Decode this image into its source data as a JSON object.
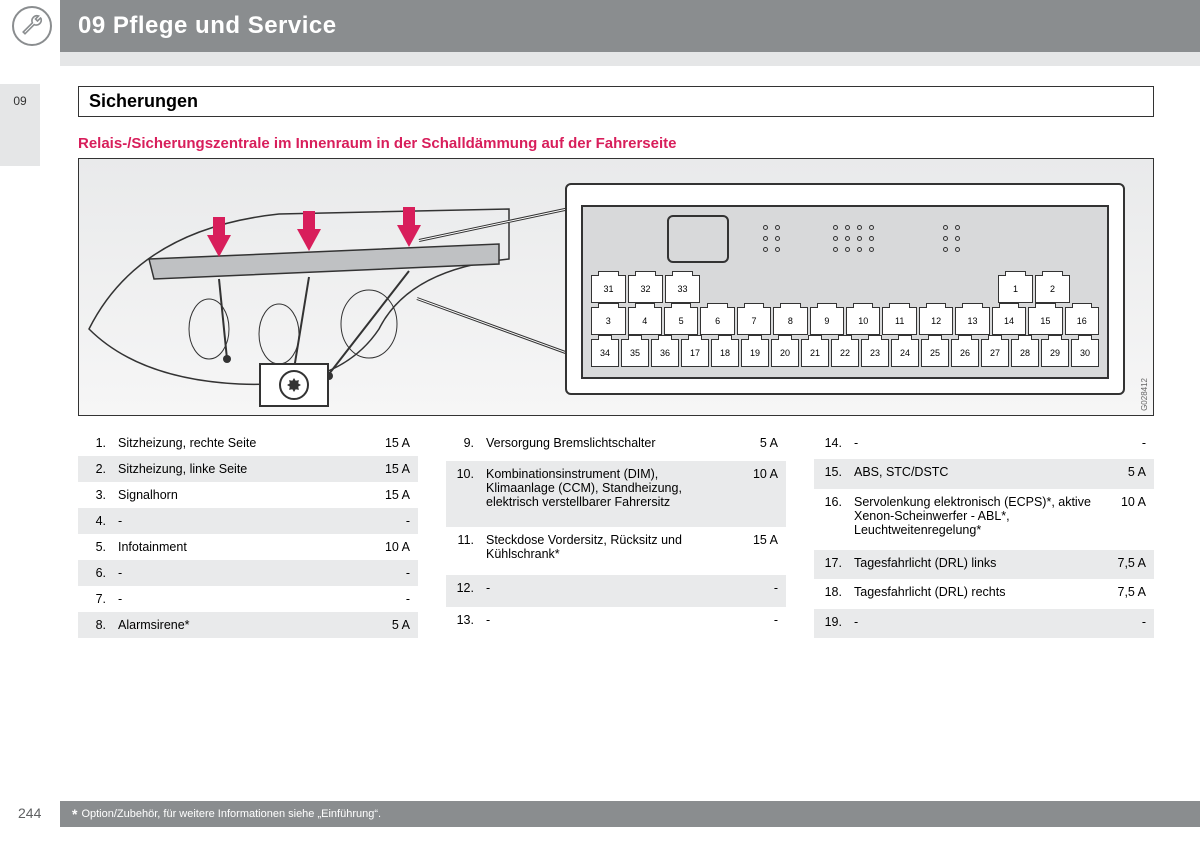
{
  "header": {
    "chapter_title": "09 Pflege und Service"
  },
  "side_tab": "09",
  "section_title": "Sicherungen",
  "subheading": "Relais-/Sicherungszentrale im Innenraum in der Schalldämmung auf der Fahrerseite",
  "diagram_code": "G028412",
  "page_number": "244",
  "footnote": "Option/Zubehör, für weitere Informationen siehe „Einführung“.",
  "footnote_marker": "*",
  "fuse_numbers_top_short_left": [
    "31",
    "32",
    "33"
  ],
  "fuse_numbers_top_short_right": [
    "1",
    "2"
  ],
  "fuse_numbers_row2": [
    "3",
    "4",
    "5",
    "6",
    "7",
    "8",
    "9",
    "10",
    "11",
    "12",
    "13",
    "14",
    "15",
    "16"
  ],
  "fuse_numbers_bottom_left": [
    "34",
    "35",
    "36"
  ],
  "fuse_numbers_row3": [
    "17",
    "18",
    "19",
    "20",
    "21",
    "22",
    "23",
    "24",
    "25",
    "26",
    "27",
    "28",
    "29",
    "30"
  ],
  "tables": {
    "col1": [
      {
        "n": "1.",
        "desc": "Sitzheizung, rechte Seite",
        "amp": "15 A"
      },
      {
        "n": "2.",
        "desc": "Sitzheizung, linke Seite",
        "amp": "15 A"
      },
      {
        "n": "3.",
        "desc": "Signalhorn",
        "amp": "15 A"
      },
      {
        "n": "4.",
        "desc": "-",
        "amp": "-"
      },
      {
        "n": "5.",
        "desc": "Infotainment",
        "amp": "10 A"
      },
      {
        "n": "6.",
        "desc": "-",
        "amp": "-"
      },
      {
        "n": "7.",
        "desc": "-",
        "amp": "-"
      },
      {
        "n": "8.",
        "desc": "Alarmsirene*",
        "amp": "5 A"
      }
    ],
    "col2": [
      {
        "n": "9.",
        "desc": "Versorgung Bremslichtschalter",
        "amp": "5 A"
      },
      {
        "n": "10.",
        "desc": "Kombinationsinstrument (DIM), Klimaanlage (CCM), Standheizung, elektrisch verstellbarer Fahrersitz",
        "amp": "10 A"
      },
      {
        "n": "11.",
        "desc": "Steckdose Vordersitz, Rücksitz und Kühlschrank*",
        "amp": "15 A"
      },
      {
        "n": "12.",
        "desc": "-",
        "amp": "-"
      },
      {
        "n": "13.",
        "desc": "-",
        "amp": "-"
      }
    ],
    "col3": [
      {
        "n": "14.",
        "desc": "-",
        "amp": "-"
      },
      {
        "n": "15.",
        "desc": "ABS, STC/DSTC",
        "amp": "5 A"
      },
      {
        "n": "16.",
        "desc": "Servolenkung elektronisch (ECPS)*, aktive Xenon-Scheinwerfer - ABL*, Leuchtweitenregelung*",
        "amp": "10 A"
      },
      {
        "n": "17.",
        "desc": "Tagesfahrlicht (DRL) links",
        "amp": "7,5 A"
      },
      {
        "n": "18.",
        "desc": "Tagesfahrlicht (DRL) rechts",
        "amp": "7,5 A"
      },
      {
        "n": "19.",
        "desc": "-",
        "amp": "-"
      }
    ]
  },
  "colors": {
    "header_bg": "#8a8d8f",
    "accent": "#d81e5b",
    "row_alt": "#e9eaeb"
  }
}
